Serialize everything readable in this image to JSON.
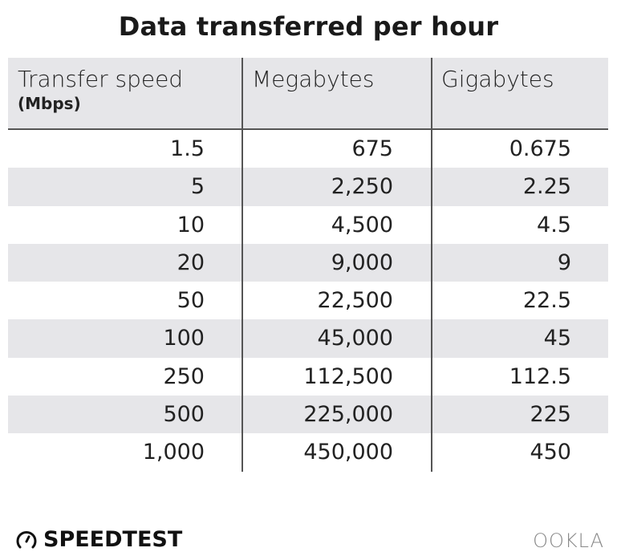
{
  "chart_data": {
    "type": "table",
    "title": "Data transferred per hour",
    "columns": [
      {
        "label": "Transfer speed",
        "sublabel": "(Mbps)"
      },
      {
        "label": "Megabytes"
      },
      {
        "label": "Gigabytes"
      }
    ],
    "rows": [
      [
        "1.5",
        "675",
        "0.675"
      ],
      [
        "5",
        "2,250",
        "2.25"
      ],
      [
        "10",
        "4,500",
        "4.5"
      ],
      [
        "20",
        "9,000",
        "9"
      ],
      [
        "50",
        "22,500",
        "22.5"
      ],
      [
        "100",
        "45,000",
        "45"
      ],
      [
        "250",
        "112,500",
        "112.5"
      ],
      [
        "500",
        "225,000",
        "225"
      ],
      [
        "1,000",
        "450,000",
        "450"
      ]
    ]
  },
  "branding": {
    "speedtest": "SPEEDTEST",
    "ookla": "OOKLA"
  },
  "colors": {
    "stripe": "#e6e6e9",
    "divider": "#555555"
  }
}
